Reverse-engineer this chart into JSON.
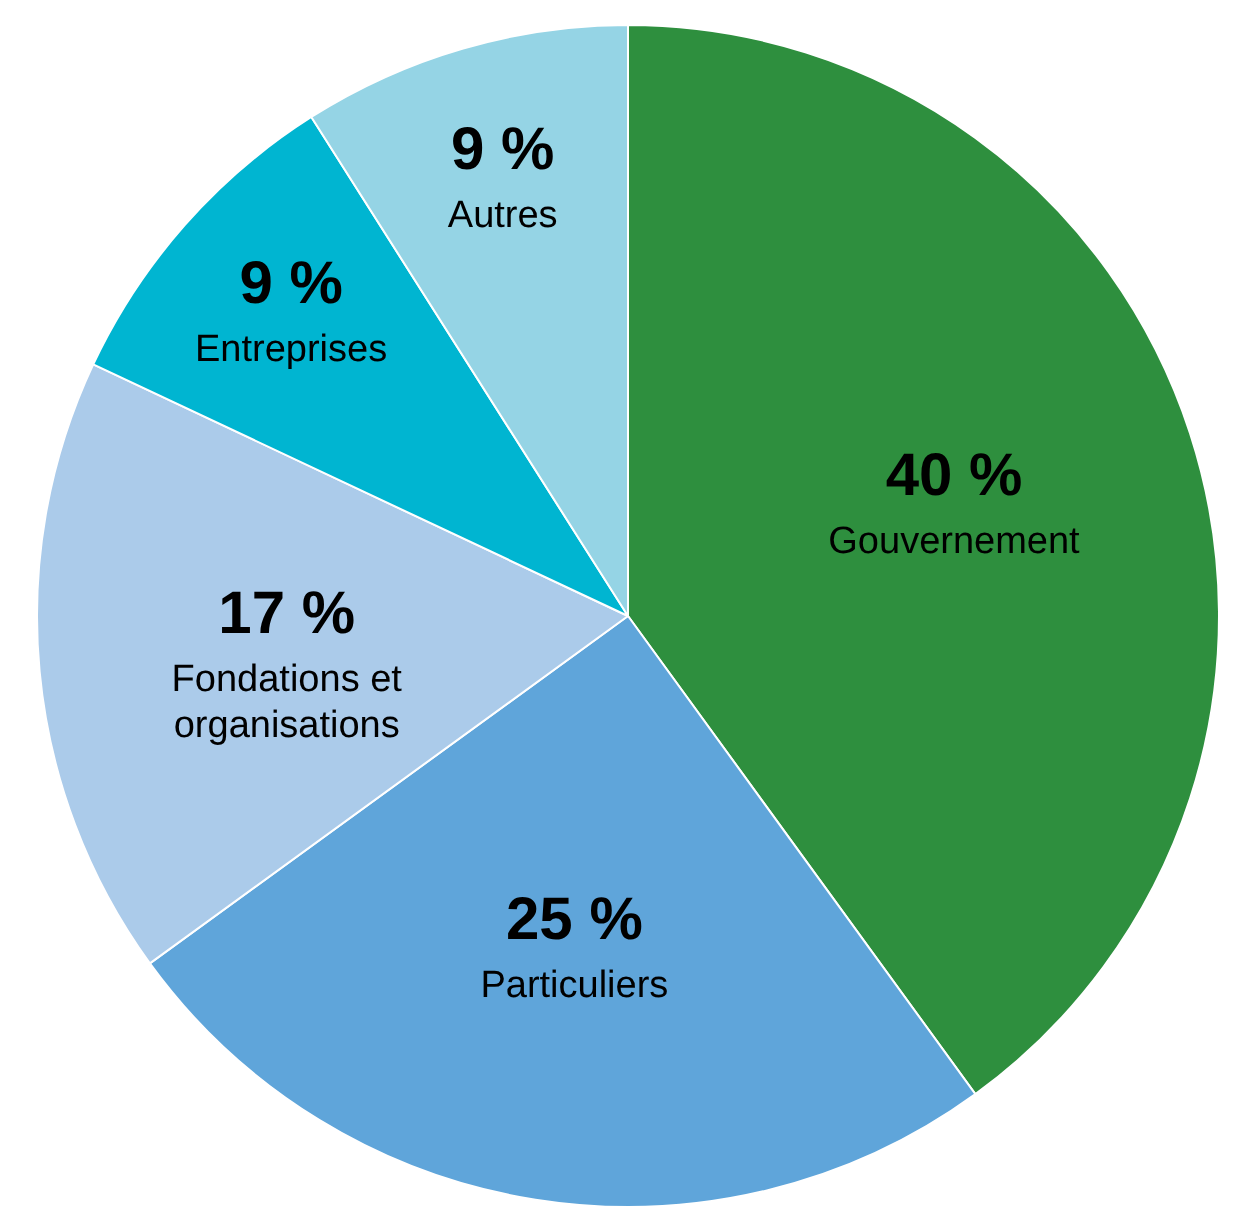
{
  "chart_data": {
    "type": "pie",
    "categories": [
      "Gouvernement",
      "Particuliers",
      "Fondations et organisations",
      "Entreprises",
      "Autres"
    ],
    "values": [
      40,
      25,
      17,
      9,
      9
    ],
    "value_labels": [
      "40 %",
      "25 %",
      "17 %",
      "9 %",
      "9 %"
    ],
    "colors": [
      "#2e8f3e",
      "#5fa5da",
      "#abcbea",
      "#00b5d1",
      "#95d4e5"
    ],
    "legend": false
  }
}
